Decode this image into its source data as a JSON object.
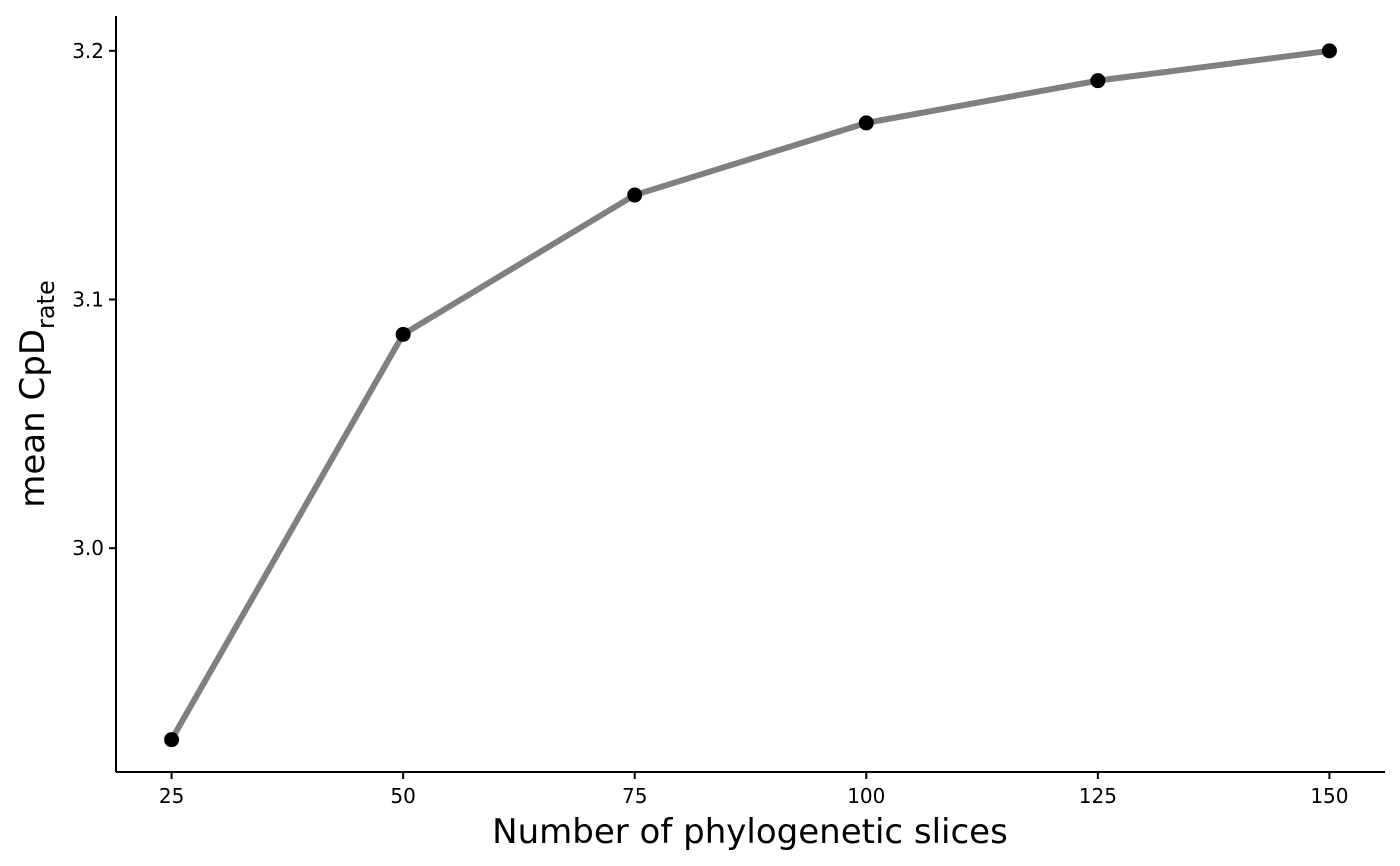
{
  "chart_data": {
    "type": "line",
    "title": "",
    "xlabel": "Number of phylogenetic slices",
    "ylabel": {
      "main": "mean CpD",
      "subscript": "rate"
    },
    "x": [
      25,
      50,
      75,
      100,
      125,
      150
    ],
    "series": [
      {
        "values": [
          2.923,
          3.086,
          3.142,
          3.171,
          3.188,
          3.2
        ]
      }
    ],
    "xlim": [
      19,
      156
    ],
    "ylim": [
      2.91,
      3.214
    ],
    "x_ticks": [
      25,
      50,
      75,
      100,
      125,
      150
    ],
    "x_tick_labels": [
      "25",
      "50",
      "75",
      "100",
      "125",
      "150"
    ],
    "y_ticks": [
      3.0,
      3.1,
      3.2
    ],
    "y_tick_labels": [
      "3.0",
      "3.1",
      "3.2"
    ],
    "grid": false,
    "legend": "none",
    "colors": {
      "line": "#808080",
      "point": "#000000",
      "axis": "#000000"
    }
  }
}
